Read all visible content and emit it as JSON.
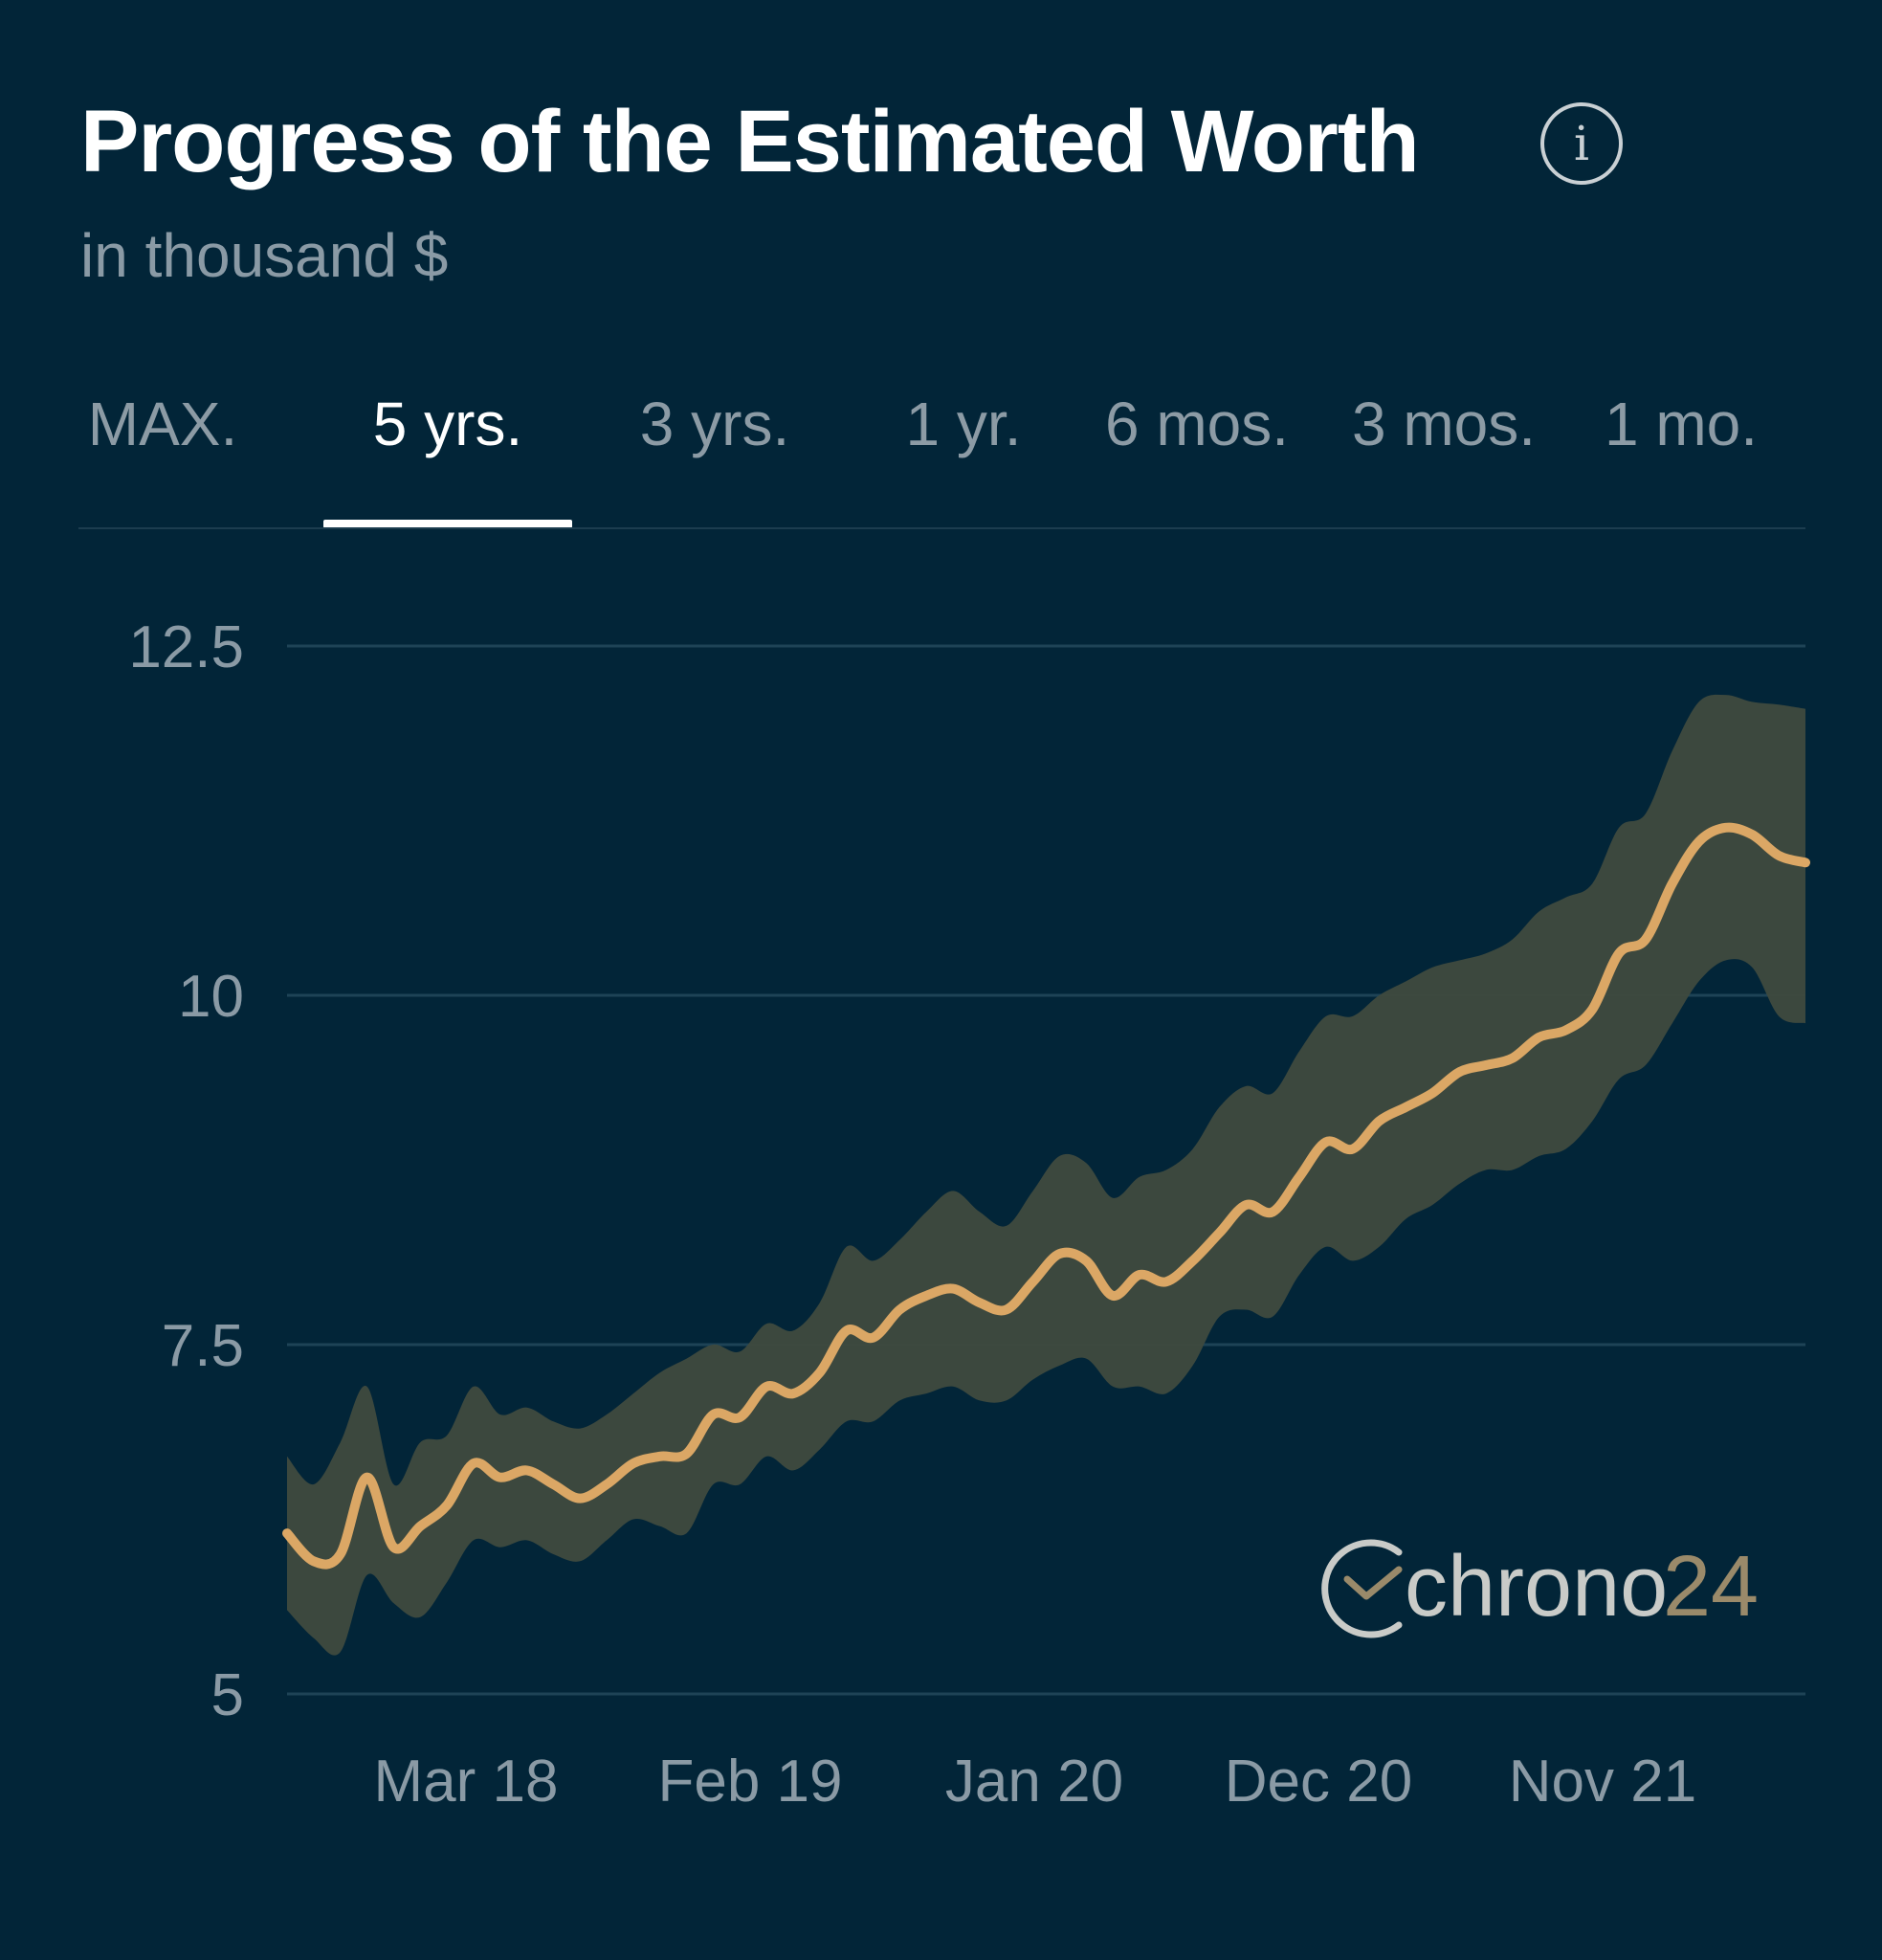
{
  "header": {
    "title": "Progress of the Estimated Worth",
    "subtitle": "in thousand $",
    "info_icon": "info-icon"
  },
  "tabs": [
    {
      "label": "MAX.",
      "active": false
    },
    {
      "label": "5 yrs.",
      "active": true
    },
    {
      "label": "3 yrs.",
      "active": false
    },
    {
      "label": "1 yr.",
      "active": false
    },
    {
      "label": "6 mos.",
      "active": false
    },
    {
      "label": "3 mos.",
      "active": false
    },
    {
      "label": "1 mo.",
      "active": false
    }
  ],
  "watermark": {
    "brand_part1": "chrono",
    "brand_part2": "24",
    "logo_icon": "clock-check-icon"
  },
  "colors": {
    "background": "#022538",
    "line": "#dba765",
    "band": "#3f4a3e",
    "grid": "#1e4356",
    "axis_text": "#8a9aa5",
    "brand_accent": "#9a8a6a"
  },
  "chart_data": {
    "type": "area",
    "title": "Progress of the Estimated Worth",
    "subtitle": "in thousand $",
    "xlabel": "",
    "ylabel": "",
    "x_tick_labels": [
      "Mar 18",
      "Feb 19",
      "Jan 20",
      "Dec 20",
      "Nov 21"
    ],
    "y_ticks": [
      5,
      7.5,
      10,
      12.5
    ],
    "ylim": [
      5,
      12.5
    ],
    "grid": true,
    "x": [
      "Aug 17",
      "Sep 17",
      "Oct 17",
      "Nov 17",
      "Dec 17",
      "Jan 18",
      "Feb 18",
      "Mar 18",
      "Apr 18",
      "May 18",
      "Jun 18",
      "Jul 18",
      "Aug 18",
      "Sep 18",
      "Oct 18",
      "Nov 18",
      "Dec 18",
      "Jan 19",
      "Feb 19",
      "Mar 19",
      "Apr 19",
      "May 19",
      "Jun 19",
      "Jul 19",
      "Aug 19",
      "Sep 19",
      "Oct 19",
      "Nov 19",
      "Dec 19",
      "Jan 20",
      "Feb 20",
      "Mar 20",
      "Apr 20",
      "May 20",
      "Jun 20",
      "Jul 20",
      "Aug 20",
      "Sep 20",
      "Oct 20",
      "Nov 20",
      "Dec 20",
      "Jan 21",
      "Feb 21",
      "Mar 21",
      "Apr 21",
      "May 21",
      "Jun 21",
      "Jul 21",
      "Aug 21",
      "Sep 21",
      "Oct 21",
      "Nov 21",
      "Dec 21",
      "Jan 22",
      "Feb 22",
      "Mar 22",
      "Apr 22",
      "May 22"
    ],
    "series": [
      {
        "role": "estimate",
        "values": [
          6.15,
          5.95,
          6.0,
          6.55,
          6.05,
          6.2,
          6.35,
          6.65,
          6.55,
          6.6,
          6.5,
          6.4,
          6.5,
          6.65,
          6.7,
          6.72,
          7.0,
          6.98,
          7.2,
          7.15,
          7.3,
          7.6,
          7.55,
          7.75,
          7.85,
          7.9,
          7.8,
          7.75,
          7.95,
          8.15,
          8.1,
          7.85,
          8.0,
          7.95,
          8.1,
          8.3,
          8.5,
          8.45,
          8.7,
          8.95,
          8.9,
          9.1,
          9.2,
          9.3,
          9.45,
          9.5,
          9.55,
          9.7,
          9.75,
          9.9,
          10.3,
          10.4,
          10.8,
          11.1,
          11.2,
          11.15,
          11.0,
          10.95
        ]
      },
      {
        "role": "range_high",
        "values": [
          6.7,
          6.5,
          6.8,
          7.2,
          6.5,
          6.8,
          6.85,
          7.2,
          7.0,
          7.05,
          6.95,
          6.9,
          7.0,
          7.15,
          7.3,
          7.4,
          7.5,
          7.45,
          7.65,
          7.6,
          7.8,
          8.2,
          8.1,
          8.25,
          8.45,
          8.6,
          8.45,
          8.35,
          8.6,
          8.85,
          8.8,
          8.55,
          8.7,
          8.75,
          8.9,
          9.2,
          9.35,
          9.3,
          9.6,
          9.85,
          9.85,
          10.0,
          10.1,
          10.2,
          10.25,
          10.3,
          10.4,
          10.6,
          10.7,
          10.8,
          11.2,
          11.3,
          11.75,
          12.1,
          12.15,
          12.1,
          12.08,
          12.05
        ]
      },
      {
        "role": "range_low",
        "values": [
          5.6,
          5.4,
          5.3,
          5.85,
          5.65,
          5.55,
          5.8,
          6.1,
          6.05,
          6.1,
          6.0,
          5.95,
          6.1,
          6.25,
          6.2,
          6.15,
          6.5,
          6.5,
          6.7,
          6.6,
          6.75,
          6.95,
          6.95,
          7.1,
          7.15,
          7.2,
          7.1,
          7.1,
          7.25,
          7.35,
          7.4,
          7.2,
          7.2,
          7.15,
          7.35,
          7.7,
          7.75,
          7.7,
          8.0,
          8.2,
          8.1,
          8.2,
          8.4,
          8.5,
          8.65,
          8.75,
          8.75,
          8.85,
          8.9,
          9.1,
          9.4,
          9.5,
          9.8,
          10.1,
          10.25,
          10.2,
          9.85,
          9.8
        ]
      }
    ]
  }
}
